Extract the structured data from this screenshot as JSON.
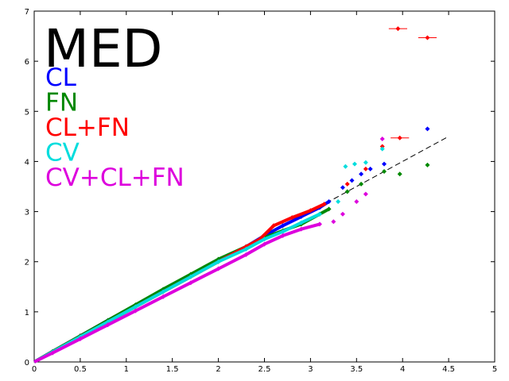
{
  "chart_data": {
    "type": "scatter",
    "title": "MED",
    "xlabel": "",
    "ylabel": "",
    "xlim": [
      0,
      5
    ],
    "ylim": [
      0,
      7
    ],
    "x_ticks": [
      "0",
      "0.5",
      "1",
      "1.5",
      "2",
      "2.5",
      "3",
      "3.5",
      "4",
      "4.5",
      "5"
    ],
    "y_ticks": [
      "0",
      "1",
      "2",
      "3",
      "4",
      "5",
      "6",
      "7"
    ],
    "legend_position": "top-left",
    "reference_line": {
      "style": "dashed",
      "color": "#000000",
      "x": [
        0,
        4.5
      ],
      "y": [
        0,
        4.5
      ]
    },
    "series": [
      {
        "name": "CL",
        "color": "#0000ff",
        "points": [
          [
            0.2,
            0.21
          ],
          [
            0.5,
            0.52
          ],
          [
            0.8,
            0.83
          ],
          [
            1.1,
            1.13
          ],
          [
            1.4,
            1.43
          ],
          [
            1.7,
            1.72
          ],
          [
            2.0,
            2.02
          ],
          [
            2.3,
            2.3
          ],
          [
            2.5,
            2.52
          ],
          [
            2.7,
            2.72
          ],
          [
            2.9,
            2.9
          ],
          [
            3.1,
            3.08
          ],
          [
            3.2,
            3.2
          ],
          [
            3.35,
            3.48
          ],
          [
            3.45,
            3.62
          ],
          [
            3.55,
            3.75
          ],
          [
            3.65,
            3.85
          ],
          [
            3.8,
            3.95
          ],
          [
            4.27,
            4.65
          ]
        ]
      },
      {
        "name": "FN",
        "color": "#008800",
        "points": [
          [
            0.2,
            0.21
          ],
          [
            0.5,
            0.52
          ],
          [
            0.8,
            0.83
          ],
          [
            1.1,
            1.14
          ],
          [
            1.4,
            1.45
          ],
          [
            1.7,
            1.75
          ],
          [
            2.0,
            2.05
          ],
          [
            2.3,
            2.3
          ],
          [
            2.5,
            2.48
          ],
          [
            2.7,
            2.62
          ],
          [
            2.9,
            2.75
          ],
          [
            3.1,
            2.95
          ],
          [
            3.2,
            3.05
          ],
          [
            3.4,
            3.4
          ],
          [
            3.55,
            3.55
          ],
          [
            3.8,
            3.8
          ],
          [
            3.97,
            3.75
          ],
          [
            4.27,
            3.93
          ]
        ]
      },
      {
        "name": "CL+FN",
        "color": "#ff0000",
        "points": [
          [
            0.2,
            0.2
          ],
          [
            0.5,
            0.5
          ],
          [
            0.8,
            0.8
          ],
          [
            1.1,
            1.1
          ],
          [
            1.4,
            1.4
          ],
          [
            1.7,
            1.7
          ],
          [
            2.0,
            2.0
          ],
          [
            2.3,
            2.3
          ],
          [
            2.45,
            2.45
          ],
          [
            2.6,
            2.72
          ],
          [
            2.8,
            2.88
          ],
          [
            3.0,
            3.02
          ],
          [
            3.15,
            3.15
          ],
          [
            3.4,
            3.55
          ],
          [
            3.6,
            3.85
          ],
          [
            3.78,
            4.3
          ],
          [
            3.97,
            4.47
          ],
          [
            3.95,
            6.65
          ],
          [
            4.27,
            6.47
          ]
        ]
      },
      {
        "name": "CV",
        "color": "#00dddd",
        "points": [
          [
            0.2,
            0.2
          ],
          [
            0.5,
            0.5
          ],
          [
            0.8,
            0.8
          ],
          [
            1.1,
            1.1
          ],
          [
            1.4,
            1.4
          ],
          [
            1.7,
            1.7
          ],
          [
            2.0,
            2.0
          ],
          [
            2.3,
            2.25
          ],
          [
            2.5,
            2.45
          ],
          [
            2.7,
            2.6
          ],
          [
            2.9,
            2.78
          ],
          [
            3.1,
            2.95
          ],
          [
            3.3,
            3.2
          ],
          [
            3.38,
            3.9
          ],
          [
            3.48,
            3.95
          ],
          [
            3.6,
            3.98
          ],
          [
            3.78,
            4.25
          ]
        ]
      },
      {
        "name": "CV+CL+FN",
        "color": "#dd00dd",
        "points": [
          [
            0.2,
            0.18
          ],
          [
            0.5,
            0.46
          ],
          [
            0.8,
            0.74
          ],
          [
            1.1,
            1.02
          ],
          [
            1.4,
            1.3
          ],
          [
            1.7,
            1.58
          ],
          [
            2.0,
            1.86
          ],
          [
            2.3,
            2.14
          ],
          [
            2.5,
            2.35
          ],
          [
            2.7,
            2.52
          ],
          [
            2.9,
            2.65
          ],
          [
            3.1,
            2.75
          ],
          [
            3.25,
            2.8
          ],
          [
            3.35,
            2.95
          ],
          [
            3.5,
            3.2
          ],
          [
            3.6,
            3.35
          ],
          [
            3.78,
            4.45
          ]
        ]
      }
    ],
    "error_bars": [
      {
        "color": "#ff0000",
        "x": 3.95,
        "y": 6.65,
        "xerr": 0.1
      },
      {
        "color": "#ff0000",
        "x": 4.27,
        "y": 6.47,
        "xerr": 0.1
      },
      {
        "color": "#ff0000",
        "x": 3.97,
        "y": 4.47,
        "xerr": 0.1
      }
    ]
  }
}
